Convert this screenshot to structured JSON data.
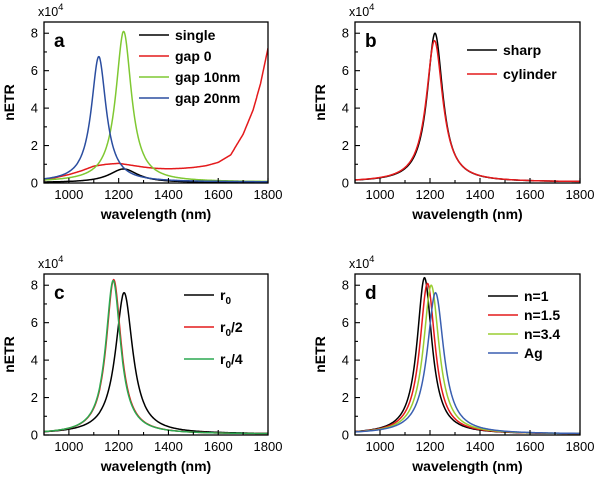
{
  "chart_data": [
    {
      "type": "line",
      "panel": "a",
      "xlabel": "wavelength (nm)",
      "ylabel": "nETR",
      "yscale_label": "x10",
      "yscale_exp": "4",
      "xlim": [
        900,
        1800
      ],
      "ylim": [
        0,
        8.6
      ],
      "xticks": [
        "1000",
        "1200",
        "1400",
        "1600",
        "1800"
      ],
      "yticks": [
        "0",
        "2",
        "4",
        "6",
        "8"
      ],
      "legend_position": "top-right",
      "series": [
        {
          "name": "single",
          "color": "#000000",
          "model": "lorentz",
          "peak": 0.75,
          "center": 1220,
          "width": 70,
          "base": 0.02
        },
        {
          "name": "gap 0",
          "color": "#e41a1c",
          "model": "points",
          "x": [
            900,
            1000,
            1050,
            1100,
            1150,
            1200,
            1250,
            1300,
            1350,
            1400,
            1450,
            1500,
            1550,
            1600,
            1650,
            1700,
            1740,
            1770,
            1800
          ],
          "y": [
            0.15,
            0.45,
            0.65,
            0.9,
            1.0,
            1.05,
            0.95,
            0.85,
            0.78,
            0.76,
            0.78,
            0.83,
            0.92,
            1.1,
            1.5,
            2.6,
            3.9,
            5.3,
            7.2
          ]
        },
        {
          "name": "gap 10nm",
          "color": "#7fc832",
          "model": "lorentz",
          "peak": 8.1,
          "center": 1220,
          "width": 38,
          "base": 0.05
        },
        {
          "name": "gap 20nm",
          "color": "#2b4ea0",
          "model": "lorentz",
          "peak": 6.75,
          "center": 1120,
          "width": 36,
          "base": 0.05
        }
      ]
    },
    {
      "type": "line",
      "panel": "b",
      "xlabel": "wavelength (nm)",
      "ylabel": "nETR",
      "yscale_label": "x10",
      "yscale_exp": "4",
      "xlim": [
        900,
        1800
      ],
      "ylim": [
        0,
        8.6
      ],
      "xticks": [
        "1000",
        "1200",
        "1400",
        "1600",
        "1800"
      ],
      "yticks": [
        "0",
        "2",
        "4",
        "6",
        "8"
      ],
      "legend_position": "top-right",
      "series": [
        {
          "name": "sharp",
          "color": "#000000",
          "model": "lorentz",
          "peak": 8.0,
          "center": 1220,
          "width": 38,
          "base": 0.05
        },
        {
          "name": "cylinder",
          "color": "#e41a1c",
          "model": "lorentz",
          "peak": 7.6,
          "center": 1218,
          "width": 40,
          "base": 0.05
        }
      ]
    },
    {
      "type": "line",
      "panel": "c",
      "xlabel": "wavelength (nm)",
      "ylabel": "nETR",
      "yscale_label": "x10",
      "yscale_exp": "4",
      "xlim": [
        900,
        1800
      ],
      "ylim": [
        0,
        8.6
      ],
      "xticks": [
        "1000",
        "1200",
        "1400",
        "1600",
        "1800"
      ],
      "yticks": [
        "0",
        "2",
        "4",
        "6",
        "8"
      ],
      "legend_position": "top-right",
      "series": [
        {
          "name": "r",
          "sub": "0",
          "suffix": "",
          "color": "#000000",
          "model": "lorentz",
          "peak": 7.6,
          "center": 1222,
          "width": 42,
          "base": 0.05
        },
        {
          "name": "r",
          "sub": "0",
          "suffix": "/2",
          "color": "#e41a1c",
          "model": "lorentz",
          "peak": 8.3,
          "center": 1180,
          "width": 36,
          "base": 0.05
        },
        {
          "name": "r",
          "sub": "0",
          "suffix": "/4",
          "color": "#2ca850",
          "model": "lorentz",
          "peak": 8.25,
          "center": 1178,
          "width": 36,
          "base": 0.05
        }
      ]
    },
    {
      "type": "line",
      "panel": "d",
      "xlabel": "wavelength (nm)",
      "ylabel": "nETR",
      "yscale_label": "x10",
      "yscale_exp": "4",
      "xlim": [
        900,
        1800
      ],
      "ylim": [
        0,
        8.6
      ],
      "xticks": [
        "1000",
        "1200",
        "1400",
        "1600",
        "1800"
      ],
      "yticks": [
        "0",
        "2",
        "4",
        "6",
        "8"
      ],
      "legend_position": "top-right",
      "series": [
        {
          "name": "n=1",
          "color": "#000000",
          "model": "lorentz",
          "peak": 8.4,
          "center": 1178,
          "width": 36,
          "base": 0.05
        },
        {
          "name": "n=1.5",
          "color": "#e41a1c",
          "model": "lorentz",
          "peak": 8.1,
          "center": 1190,
          "width": 37,
          "base": 0.05
        },
        {
          "name": "n=3.4",
          "color": "#9acd32",
          "model": "lorentz",
          "peak": 8.0,
          "center": 1205,
          "width": 38,
          "base": 0.05
        },
        {
          "name": "Ag",
          "color": "#3a5fb0",
          "model": "lorentz",
          "peak": 7.6,
          "center": 1222,
          "width": 40,
          "base": 0.05
        }
      ]
    }
  ]
}
